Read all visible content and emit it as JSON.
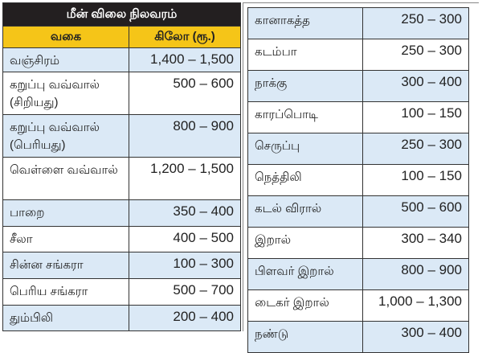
{
  "title": "மீன் விலை நிலவரம்",
  "columns": [
    "வகை",
    "கிலோ (ரூ.)"
  ],
  "left_rows": [
    {
      "name": "வஞ்சிரம்",
      "price": "1,400 – 1,500"
    },
    {
      "name": "கறுப்பு வவ்வால் (சிறியது)",
      "price": "500 – 600"
    },
    {
      "name": "கறுப்பு வவ்வால் (பெரியது)",
      "price": "800 – 900"
    },
    {
      "name": "வெள்ளை வவ்வால்",
      "price": "1,200 – 1,500"
    },
    {
      "name": "பாறை",
      "price": "350 – 400"
    },
    {
      "name": "சீலா",
      "price": "400 – 500"
    },
    {
      "name": "சின்ன சங்கரா",
      "price": "100 – 300"
    },
    {
      "name": "பெரிய சங்கரா",
      "price": "500 – 700"
    },
    {
      "name": "தும்பிலி",
      "price": "200 – 400"
    }
  ],
  "right_rows": [
    {
      "name": "கானாகத்த",
      "price": "250 – 300"
    },
    {
      "name": "கடம்பா",
      "price": "250 – 300"
    },
    {
      "name": "நாக்கு",
      "price": "300 – 400"
    },
    {
      "name": "காரப்பொடி",
      "price": "100 – 150"
    },
    {
      "name": "செருப்பு",
      "price": "250 – 300"
    },
    {
      "name": "நெத்திலி",
      "price": "100 – 150"
    },
    {
      "name": "கடல் விரால்",
      "price": "500 – 600"
    },
    {
      "name": "இறால்",
      "price": "300 – 340"
    },
    {
      "name": "பிளவர் இறால்",
      "price": "800 – 900"
    },
    {
      "name": "டைகர் இறால்",
      "price": "1,000 – 1,300"
    },
    {
      "name": "நண்டு",
      "price": "300 – 400"
    }
  ],
  "colors": {
    "title_bg": "#231f20",
    "header_bg": "#f5c518",
    "stripe": "#dbe9f6"
  }
}
